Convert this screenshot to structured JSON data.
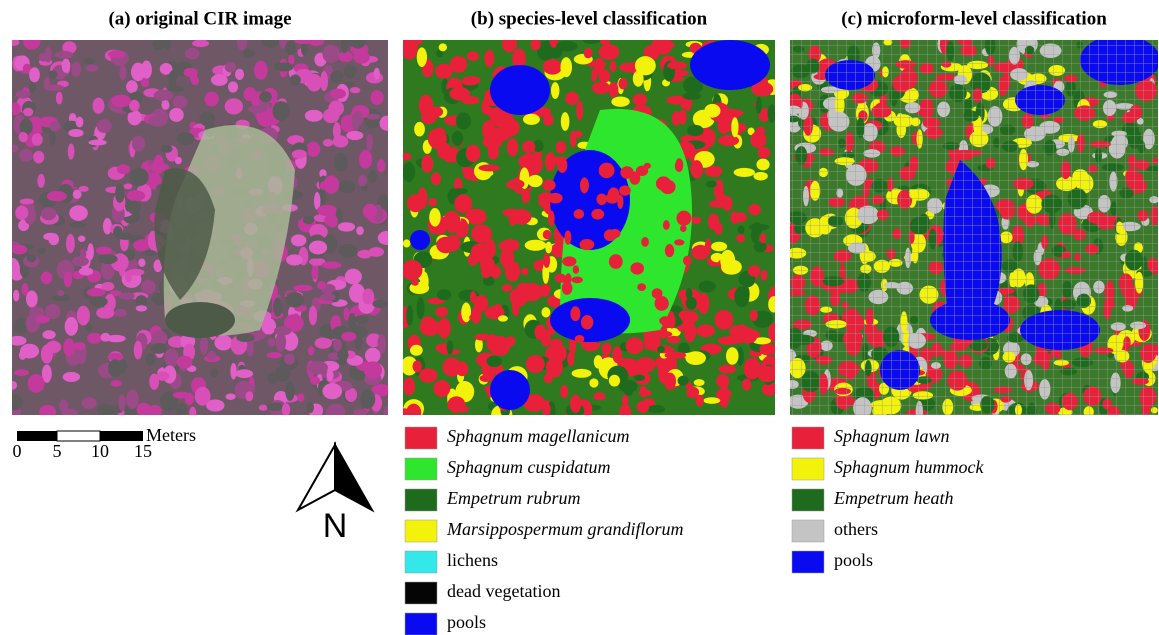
{
  "panels": [
    {
      "title": "(a) original CIR image"
    },
    {
      "title": "(b) species-level classification",
      "legend": [
        {
          "label": "Sphagnum magellanicum",
          "color": "#e8203a",
          "italic": true
        },
        {
          "label": "Sphagnum cuspidatum",
          "color": "#2ee62e",
          "italic": true
        },
        {
          "label": "Empetrum rubrum",
          "color": "#1e6b1e",
          "italic": true
        },
        {
          "label": "Marsippospermum grandiflorum",
          "color": "#f2f20a",
          "italic": true
        },
        {
          "label": "lichens",
          "color": "#33e8e8",
          "italic": false
        },
        {
          "label": "dead vegetation",
          "color": "#050505",
          "italic": false
        },
        {
          "label": "pools",
          "color": "#0a0af0",
          "italic": false
        }
      ]
    },
    {
      "title": "(c) microform-level classification",
      "legend": [
        {
          "label": "Sphagnum lawn",
          "color": "#e8203a",
          "italic": true
        },
        {
          "label": "Sphagnum hummock",
          "color": "#f2f20a",
          "italic": true
        },
        {
          "label": "Empetrum heath",
          "color": "#1e6b1e",
          "italic": true
        },
        {
          "label": "others",
          "color": "#c4c4c4",
          "italic": false
        },
        {
          "label": "pools",
          "color": "#0a0af0",
          "italic": false
        }
      ]
    }
  ],
  "scale_bar": {
    "unit": "Meters",
    "ticks": [
      "0",
      "5",
      "10",
      "15"
    ]
  },
  "north": "N"
}
